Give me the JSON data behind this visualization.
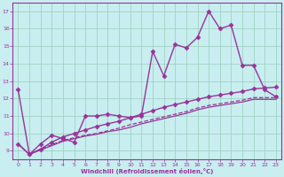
{
  "xlabel": "Windchill (Refroidissement éolien,°C)",
  "ylabel": "",
  "xlim": [
    -0.5,
    23.5
  ],
  "ylim": [
    8.5,
    17.5
  ],
  "xticks": [
    0,
    1,
    2,
    3,
    4,
    5,
    6,
    7,
    8,
    9,
    10,
    11,
    12,
    13,
    14,
    15,
    16,
    17,
    18,
    19,
    20,
    21,
    22,
    23
  ],
  "yticks": [
    9,
    10,
    11,
    12,
    13,
    14,
    15,
    16,
    17
  ],
  "bg_color": "#c8eef0",
  "line_color": "#993399",
  "grid_color": "#99ccbb",
  "lines": [
    {
      "x": [
        0,
        1,
        2,
        3,
        4,
        5,
        6,
        7,
        8,
        9,
        10,
        11,
        12,
        13,
        14,
        15,
        16,
        17,
        18,
        19,
        20,
        21,
        22,
        23
      ],
      "y": [
        12.5,
        8.8,
        9.4,
        9.9,
        9.7,
        9.5,
        11.0,
        11.0,
        11.1,
        11.0,
        10.9,
        11.0,
        14.7,
        13.3,
        15.1,
        14.9,
        15.5,
        17.0,
        16.0,
        16.2,
        13.9,
        13.9,
        12.5,
        12.1
      ],
      "marker": "D",
      "markersize": 2.5,
      "linewidth": 1.0,
      "linestyle": "-"
    },
    {
      "x": [
        0,
        1,
        2,
        3,
        4,
        5,
        6,
        7,
        8,
        9,
        10,
        11,
        12,
        13,
        14,
        15,
        16,
        17,
        18,
        19,
        20,
        21,
        22,
        23
      ],
      "y": [
        9.4,
        8.8,
        9.1,
        9.5,
        9.8,
        10.0,
        10.2,
        10.4,
        10.55,
        10.7,
        10.9,
        11.1,
        11.3,
        11.5,
        11.65,
        11.8,
        11.95,
        12.1,
        12.2,
        12.3,
        12.4,
        12.55,
        12.6,
        12.65
      ],
      "marker": "D",
      "markersize": 2.5,
      "linewidth": 1.0,
      "linestyle": "-"
    },
    {
      "x": [
        0,
        1,
        2,
        3,
        4,
        5,
        6,
        7,
        8,
        9,
        10,
        11,
        12,
        13,
        14,
        15,
        16,
        17,
        18,
        19,
        20,
        21,
        22,
        23
      ],
      "y": [
        9.4,
        8.8,
        9.05,
        9.3,
        9.55,
        9.7,
        9.85,
        9.95,
        10.1,
        10.2,
        10.35,
        10.55,
        10.7,
        10.85,
        11.0,
        11.15,
        11.35,
        11.5,
        11.6,
        11.7,
        11.8,
        11.95,
        11.95,
        11.95
      ],
      "marker": null,
      "markersize": 0,
      "linewidth": 0.9,
      "linestyle": "-"
    },
    {
      "x": [
        0,
        1,
        2,
        3,
        4,
        5,
        6,
        7,
        8,
        9,
        10,
        11,
        12,
        13,
        14,
        15,
        16,
        17,
        18,
        19,
        20,
        21,
        22,
        23
      ],
      "y": [
        9.4,
        8.8,
        9.1,
        9.35,
        9.6,
        9.75,
        9.9,
        10.0,
        10.15,
        10.3,
        10.5,
        10.65,
        10.8,
        10.95,
        11.1,
        11.25,
        11.45,
        11.6,
        11.7,
        11.8,
        11.9,
        12.05,
        12.05,
        12.05
      ],
      "marker": null,
      "markersize": 0,
      "linewidth": 0.9,
      "linestyle": "--"
    }
  ]
}
